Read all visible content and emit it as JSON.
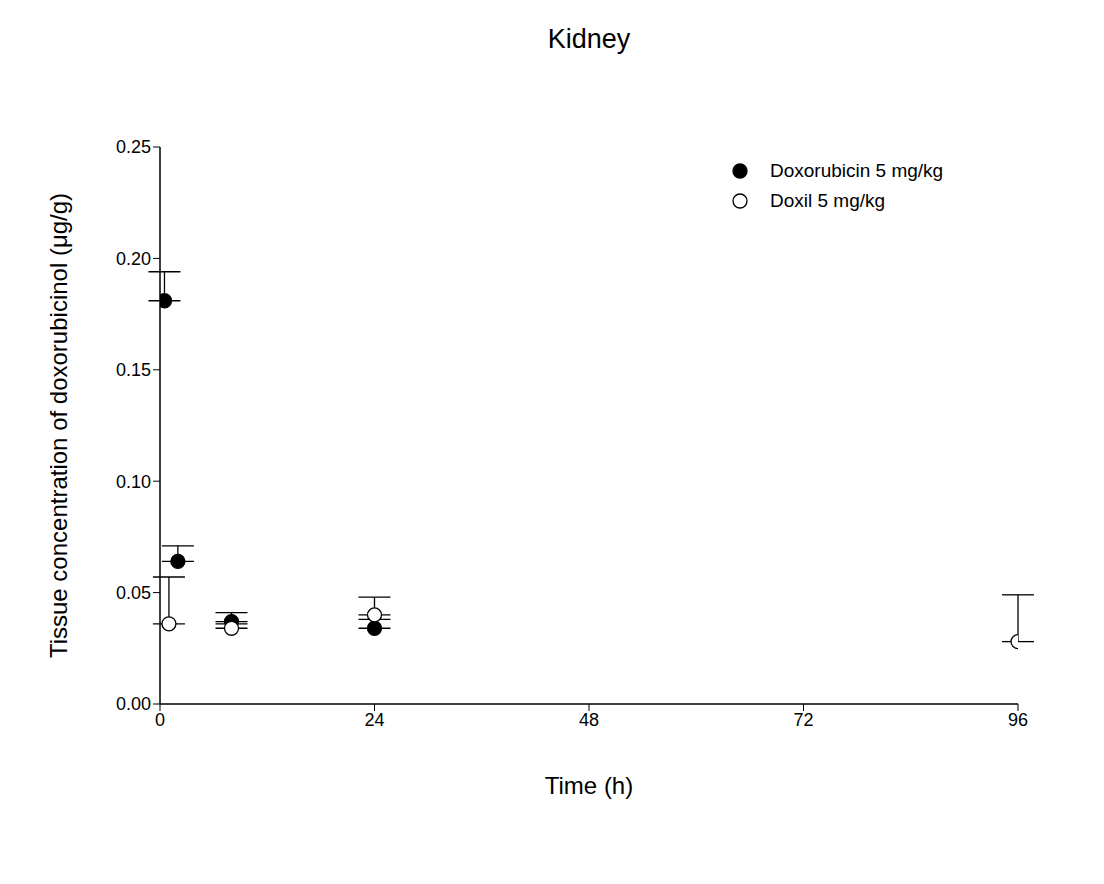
{
  "chart_data": {
    "type": "scatter",
    "title": "Kidney",
    "x_label": "Time (h)",
    "y_label": "Tissue concentration of doxorubicinol (μg/g)",
    "xlim": [
      0,
      96
    ],
    "xticks": [
      0,
      24,
      48,
      72,
      96
    ],
    "ylim": [
      0,
      0.25
    ],
    "yticks": [
      {
        "value": 0,
        "label": "0.00"
      },
      {
        "value": 0.05,
        "label": "0.05"
      },
      {
        "value": 0.1,
        "label": "0.10"
      },
      {
        "value": 0.15,
        "label": "0.15"
      },
      {
        "value": 0.2,
        "label": "0.20"
      },
      {
        "value": 0.25,
        "label": "0.25"
      }
    ],
    "legend": "upper right",
    "grid": false,
    "series": [
      {
        "name": "Doxorubicin 5 mg/kg",
        "color": "#000000",
        "marker": "filled_circle",
        "x": [
          0.5,
          2,
          8,
          24
        ],
        "values": [
          0.181,
          0.064,
          0.037,
          0.034
        ],
        "error_upper": [
          0.013,
          0.007,
          0.004,
          0.004
        ]
      },
      {
        "name": "Doxil 5 mg/kg",
        "color": "#000000",
        "marker": "open_circle",
        "x": [
          1,
          8,
          24,
          96
        ],
        "values": [
          0.036,
          0.034,
          0.04,
          0.028
        ],
        "error_upper": [
          0.021,
          0.002,
          0.008,
          0.021
        ]
      }
    ]
  }
}
